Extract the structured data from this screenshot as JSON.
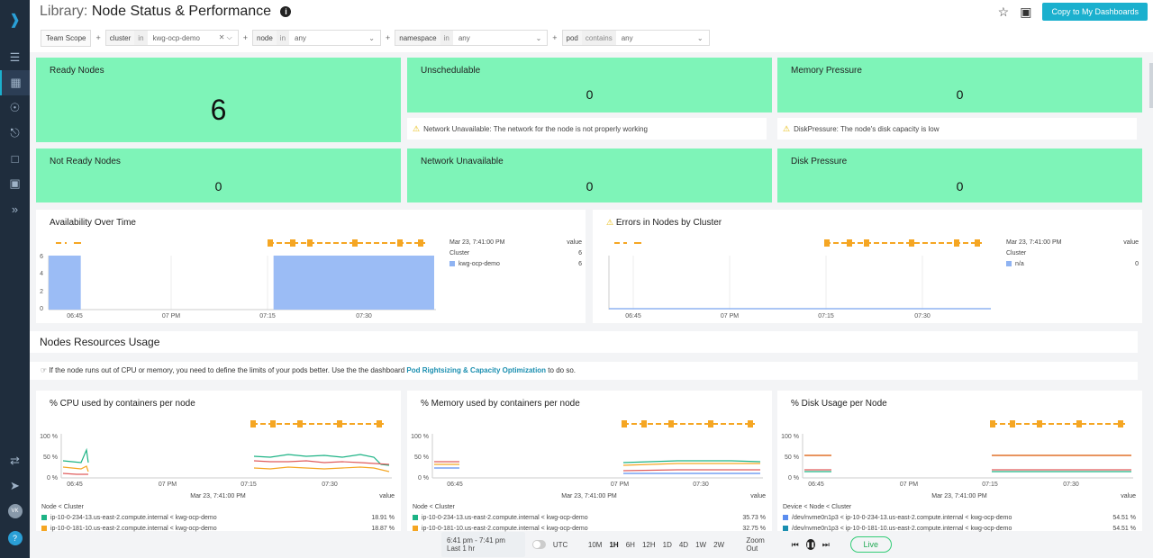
{
  "sidebar": {
    "avatar": "VK",
    "help": "?"
  },
  "header": {
    "prefix": "Library:",
    "title": "Node Status & Performance",
    "copy_button": "Copy to My Dashboards"
  },
  "filters": {
    "scope": "Team Scope",
    "plus": "+",
    "items": [
      {
        "key": "cluster",
        "op": "in",
        "value": "kwg-ocp-demo"
      },
      {
        "key": "node",
        "op": "in",
        "value": "any"
      },
      {
        "key": "namespace",
        "op": "in",
        "value": "any"
      },
      {
        "key": "pod",
        "op": "contains",
        "value": "any"
      }
    ]
  },
  "tiles": [
    {
      "title": "Ready Nodes",
      "value": "6"
    },
    {
      "title": "Unschedulable",
      "value": "0"
    },
    {
      "title": "Memory Pressure",
      "value": "0"
    },
    {
      "title": "Not Ready Nodes",
      "value": "0"
    },
    {
      "title": "Network Unavailable",
      "value": "0"
    },
    {
      "title": "Disk Pressure",
      "value": "0"
    }
  ],
  "notes": {
    "network": "Network Unavailable: The network for the node is not properly working",
    "disk": "DiskPressure: The node's disk capacity is low"
  },
  "availability": {
    "title": "Availability Over Time",
    "legend_time": "Mar 23, 7:41:00 PM",
    "legend_value_label": "value",
    "group_label": "Cluster",
    "group_value": "6",
    "series": [
      {
        "name": "kwg-ocp-demo",
        "value": "6",
        "color": "#8fb3f2"
      }
    ]
  },
  "errors": {
    "title": "Errors in Nodes by Cluster",
    "legend_time": "Mar 23, 7:41:00 PM",
    "legend_value_label": "value",
    "group_label": "Cluster",
    "series": [
      {
        "name": "n/a",
        "value": "0",
        "color": "#8fb3f2"
      }
    ]
  },
  "section": {
    "title": "Nodes Resources Usage",
    "tip_before": "If the node runs out of CPU or memory, you need to define the limits of your pods better. Use the the dashboard",
    "tip_link": "Pod Rightsizing & Capacity Optimization",
    "tip_after": "to do so."
  },
  "cpu": {
    "title": "% CPU used by containers per node",
    "legend_time": "Mar 23, 7:41:00 PM",
    "legend_value_label": "value",
    "group_label": "Node < Cluster",
    "rows": [
      {
        "name": "ip-10-0-234-13.us-east-2.compute.internal < kwg-ocp-demo",
        "value": "18.91 %",
        "color": "#1db385"
      },
      {
        "name": "ip-10-0-181-10.us-east-2.compute.internal < kwg-ocp-demo",
        "value": "18.87 %",
        "color": "#f5a623"
      }
    ]
  },
  "mem": {
    "title": "% Memory used by containers per node",
    "legend_time": "Mar 23, 7:41:00 PM",
    "legend_value_label": "value",
    "group_label": "Node < Cluster",
    "rows": [
      {
        "name": "ip-10-0-234-13.us-east-2.compute.internal < kwg-ocp-demo",
        "value": "35.73 %",
        "color": "#1db385"
      },
      {
        "name": "ip-10-0-181-10.us-east-2.compute.internal < kwg-ocp-demo",
        "value": "32.75 %",
        "color": "#f5a623"
      }
    ]
  },
  "disk": {
    "title": "% Disk Usage per Node",
    "legend_time": "Mar 23, 7:41:00 PM",
    "legend_value_label": "value",
    "group_label": "Device < Node < Cluster",
    "rows": [
      {
        "name": "/dev/nvme0n1p3 < ip-10-0-234-13.us-east-2.compute.internal < kwg-ocp-demo",
        "value": "54.51 %",
        "color": "#5b8def"
      },
      {
        "name": "/dev/nvme0n1p3 < ip-10-0-181-10.us-east-2.compute.internal < kwg-ocp-demo",
        "value": "54.51 %",
        "color": "#1b8fb0"
      }
    ]
  },
  "timebar": {
    "range": "6:41 pm - 7:41 pm",
    "range_label": "Last 1 hr",
    "utc": "UTC",
    "options": [
      "10M",
      "1H",
      "6H",
      "12H",
      "1D",
      "4D",
      "1W",
      "2W"
    ],
    "selected": "1H",
    "zoom_out": "Zoom Out",
    "live": "Live"
  },
  "chart_data": [
    {
      "type": "area",
      "title": "Availability Over Time",
      "x_ticks": [
        "06:45",
        "07 PM",
        "07:15",
        "07:30"
      ],
      "y_ticks": [
        "6",
        "4",
        "2",
        "0"
      ],
      "ylim": [
        0,
        6
      ],
      "series": [
        {
          "name": "kwg-ocp-demo",
          "segments": [
            {
              "from": "06:41",
              "to": "06:46",
              "value": 6
            },
            {
              "from": "07:16",
              "to": "07:41",
              "value": 6
            }
          ]
        }
      ]
    },
    {
      "type": "line",
      "title": "Errors in Nodes by Cluster",
      "x_ticks": [
        "06:45",
        "07 PM",
        "07:15",
        "07:30"
      ],
      "series": [
        {
          "name": "n/a",
          "value": 0
        }
      ]
    },
    {
      "type": "line",
      "title": "% CPU used by containers per node",
      "x_ticks": [
        "06:45",
        "07 PM",
        "07:15",
        "07:30"
      ],
      "y_ticks": [
        "100 %",
        "50 %",
        "0 %"
      ],
      "ylim": [
        0,
        100
      ]
    },
    {
      "type": "line",
      "title": "% Memory used by containers per node",
      "x_ticks": [
        "06:45",
        "07 PM",
        "07:15",
        "07:30"
      ],
      "y_ticks": [
        "100 %",
        "50 %",
        "0 %"
      ],
      "ylim": [
        0,
        100
      ]
    },
    {
      "type": "line",
      "title": "% Disk Usage per Node",
      "x_ticks": [
        "06:45",
        "07 PM",
        "07:15",
        "07:30"
      ],
      "y_ticks": [
        "100 %",
        "50 %",
        "0 %"
      ],
      "ylim": [
        0,
        100
      ]
    }
  ]
}
